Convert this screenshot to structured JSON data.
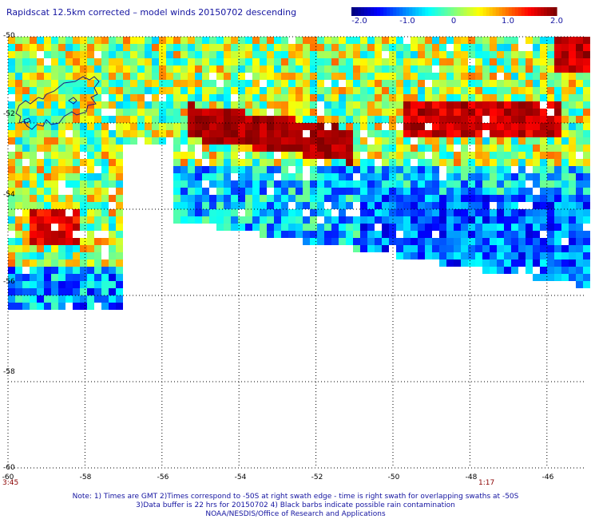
{
  "title": "Rapidscat 12.5km corrected – model winds 20150702 descending",
  "colorbar": {
    "min": -2.0,
    "max": 2.0,
    "tick_labels": [
      "-2.0",
      "-1.0",
      "0",
      "1.0",
      "2.0"
    ],
    "tick_values": [
      -2.0,
      -1.0,
      0,
      1.0,
      2.0
    ]
  },
  "axes": {
    "x_range": [
      -60,
      -45
    ],
    "y_range": [
      -50,
      -60
    ],
    "x_tick_labels": [
      "-60",
      "-58",
      "-56",
      "-54",
      "-52",
      "-50",
      "-48",
      "-46"
    ],
    "x_tick_values": [
      -60,
      -58,
      -56,
      -54,
      -52,
      -50,
      -48,
      -46
    ],
    "y_tick_labels": [
      "-50",
      "-52",
      "-54",
      "-56",
      "-58",
      "-60"
    ],
    "y_tick_values": [
      -50,
      -52,
      -54,
      -56,
      -58,
      -60
    ],
    "grid": true
  },
  "swath_times": {
    "left": "3:45",
    "right": "1:17"
  },
  "notes": {
    "line1": "Note: 1) Times are GMT 2)Times correspond to -50S at right swath edge - time is right swath for overlapping swaths at -50S",
    "line2": "3)Data buffer is 22 hrs for 20150702 4) Black barbs indicate possible rain contamination",
    "line3": "NOAA/NESDIS/Office of Research and Applications"
  },
  "colors": {
    "label_blue": "#1414a0",
    "time_red": "#8b0000",
    "coast": "#1a1a80"
  }
}
